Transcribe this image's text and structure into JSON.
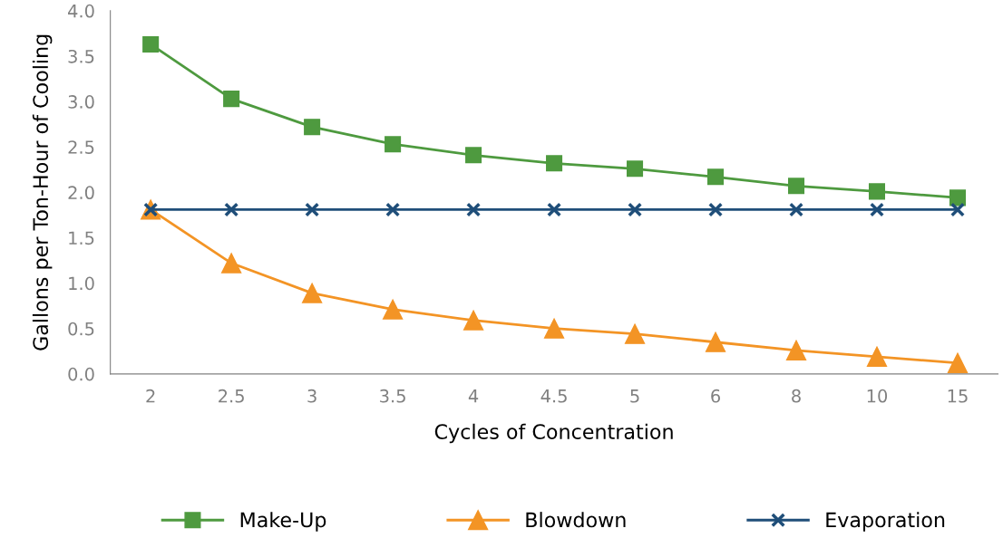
{
  "chart_data": {
    "type": "line",
    "xlabel": "Cycles of Concentration",
    "ylabel": "Gallons per Ton-Hour of Cooling",
    "categories": [
      "2",
      "2.5",
      "3",
      "3.5",
      "4",
      "4.5",
      "5",
      "6",
      "8",
      "10",
      "15"
    ],
    "series": [
      {
        "name": "Make-Up",
        "color": "#4e9a3f",
        "marker": "square",
        "values": [
          3.63,
          3.03,
          2.72,
          2.53,
          2.41,
          2.32,
          2.26,
          2.17,
          2.07,
          2.01,
          1.94
        ]
      },
      {
        "name": "Blowdown",
        "color": "#f39425",
        "marker": "triangle",
        "values": [
          1.81,
          1.22,
          0.89,
          0.71,
          0.59,
          0.5,
          0.44,
          0.35,
          0.26,
          0.19,
          0.12
        ]
      },
      {
        "name": "Evaporation",
        "color": "#1f4e79",
        "marker": "cross",
        "values": [
          1.81,
          1.81,
          1.81,
          1.81,
          1.81,
          1.81,
          1.81,
          1.81,
          1.81,
          1.81,
          1.81
        ]
      }
    ],
    "ylim": [
      0,
      4
    ],
    "yticks": [
      {
        "value": 0,
        "label": "0.0"
      },
      {
        "value": 0.5,
        "label": "0.5"
      },
      {
        "value": 1,
        "label": "1.0"
      },
      {
        "value": 1.5,
        "label": "1.5"
      },
      {
        "value": 2,
        "label": "2.0"
      },
      {
        "value": 2.5,
        "label": "2.5"
      },
      {
        "value": 3,
        "label": "3.0"
      },
      {
        "value": 3.5,
        "label": "3.5"
      },
      {
        "value": 4,
        "label": "4.0"
      }
    ],
    "grid": false,
    "legend": "bottom",
    "line_style": "solid"
  }
}
